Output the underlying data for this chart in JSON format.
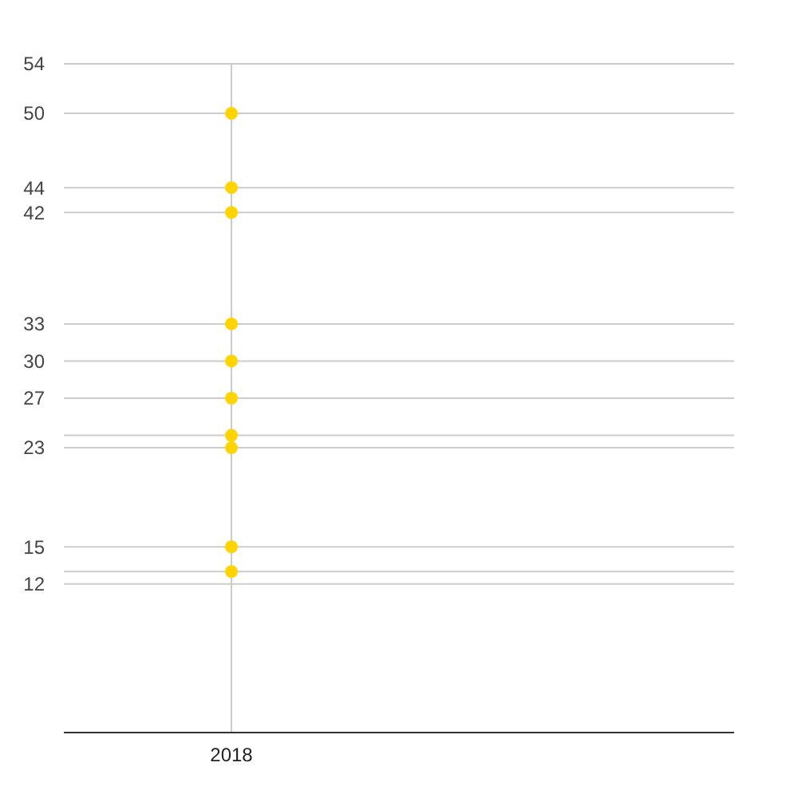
{
  "chart_data": {
    "type": "scatter",
    "categories": [
      "2018",
      null
    ],
    "series": [
      {
        "color": "#ffd400",
        "values": [
          50,
          null
        ]
      },
      {
        "color": "#ffd400",
        "values": [
          44,
          null
        ]
      },
      {
        "color": "#ffd400",
        "values": [
          42,
          null
        ]
      },
      {
        "color": "#ffd400",
        "values": [
          33,
          null
        ]
      },
      {
        "color": "#ffd400",
        "values": [
          30,
          null
        ]
      },
      {
        "color": "#ffd400",
        "values": [
          27,
          null
        ]
      },
      {
        "color": "#ffd400",
        "values": [
          24,
          null
        ]
      },
      {
        "color": "#ffd400",
        "values": [
          23,
          null
        ]
      },
      {
        "color": "#ffd400",
        "values": [
          15,
          null
        ]
      },
      {
        "color": "#ffd400",
        "values": [
          13,
          null
        ]
      }
    ],
    "ylim": [
      0,
      54
    ],
    "yticks": [
      12,
      {
        "value": 13,
        "label": null
      },
      15,
      23,
      {
        "value": 24,
        "label": null
      },
      27,
      30,
      33,
      42,
      44,
      50,
      54
    ],
    "grid": true,
    "marker": "circle"
  }
}
